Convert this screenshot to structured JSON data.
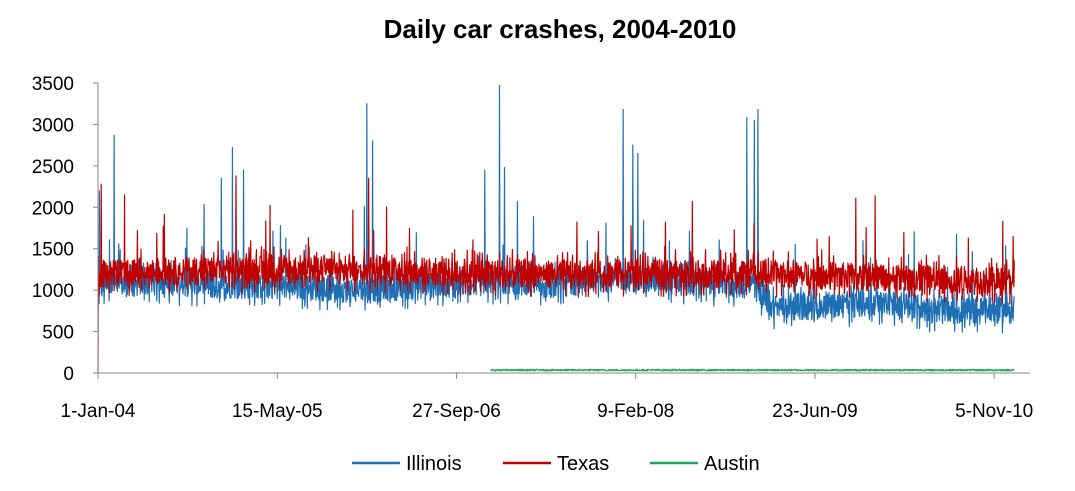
{
  "chart_data": {
    "type": "line",
    "title": "Daily car crashes, 2004-2010",
    "xlabel": "",
    "ylabel": "",
    "x_range": [
      "2004-01-01",
      "2011-02-13"
    ],
    "ylim": [
      0,
      3500
    ],
    "y_ticks": [
      0,
      500,
      1000,
      1500,
      2000,
      2500,
      3000,
      3500
    ],
    "x_ticks": [
      {
        "date": "2004-01-01",
        "label": "1-Jan-04"
      },
      {
        "date": "2005-05-15",
        "label": "15-May-05"
      },
      {
        "date": "2006-09-27",
        "label": "27-Sep-06"
      },
      {
        "date": "2008-02-09",
        "label": "9-Feb-08"
      },
      {
        "date": "2009-06-23",
        "label": "23-Jun-09"
      },
      {
        "date": "2010-11-05",
        "label": "5-Nov-10"
      }
    ],
    "grid": false,
    "legend_position": "bottom",
    "frequency": "daily",
    "series": [
      {
        "name": "Illinois",
        "color": "#1f6fb4",
        "x_start": "2004-01-01",
        "x_end": "2010-12-31",
        "baseline": [
          [
            "2004-01-01",
            1050
          ],
          [
            "2004-06-01",
            1100
          ],
          [
            "2005-01-01",
            1050
          ],
          [
            "2005-06-01",
            1050
          ],
          [
            "2006-01-01",
            1000
          ],
          [
            "2006-06-01",
            1050
          ],
          [
            "2007-01-01",
            1100
          ],
          [
            "2007-06-01",
            1050
          ],
          [
            "2008-01-01",
            1150
          ],
          [
            "2008-06-01",
            1100
          ],
          [
            "2009-01-01",
            1050
          ],
          [
            "2009-03-01",
            800
          ],
          [
            "2009-06-01",
            800
          ],
          [
            "2010-01-01",
            850
          ],
          [
            "2010-06-01",
            750
          ],
          [
            "2010-12-31",
            750
          ]
        ],
        "peaks": [
          [
            "2004-01-05",
            2200
          ],
          [
            "2004-02-15",
            2870
          ],
          [
            "2004-12-10",
            2350
          ],
          [
            "2005-01-10",
            2720
          ],
          [
            "2005-02-10",
            2450
          ],
          [
            "2006-01-20",
            3250
          ],
          [
            "2006-02-05",
            2800
          ],
          [
            "2006-12-15",
            2450
          ],
          [
            "2007-01-25",
            3470
          ],
          [
            "2007-02-08",
            2480
          ],
          [
            "2008-01-05",
            3180
          ],
          [
            "2008-02-01",
            2750
          ],
          [
            "2008-02-15",
            2650
          ],
          [
            "2008-12-15",
            3080
          ],
          [
            "2009-01-05",
            3050
          ],
          [
            "2009-01-15",
            3180
          ]
        ]
      },
      {
        "name": "Texas",
        "color": "#c00000",
        "x_start": "2004-01-01",
        "x_end": "2010-12-31",
        "baseline": [
          [
            "2004-01-01",
            1200
          ],
          [
            "2005-01-01",
            1250
          ],
          [
            "2006-01-01",
            1250
          ],
          [
            "2007-01-01",
            1200
          ],
          [
            "2008-01-01",
            1200
          ],
          [
            "2009-01-01",
            1200
          ],
          [
            "2010-01-01",
            1150
          ],
          [
            "2010-12-31",
            1100
          ]
        ],
        "peaks": [
          [
            "2004-01-01",
            0
          ],
          [
            "2004-01-10",
            2280
          ],
          [
            "2004-03-15",
            2150
          ],
          [
            "2005-01-20",
            2380
          ],
          [
            "2006-01-25",
            2350
          ],
          [
            "2009-10-15",
            2110
          ],
          [
            "2010-12-28",
            1650
          ]
        ]
      },
      {
        "name": "Austin",
        "color": "#21a366",
        "x_start": "2007-01-01",
        "x_end": "2010-12-31",
        "baseline": [
          [
            "2007-01-01",
            35
          ],
          [
            "2010-12-31",
            35
          ]
        ],
        "peaks": []
      }
    ]
  }
}
